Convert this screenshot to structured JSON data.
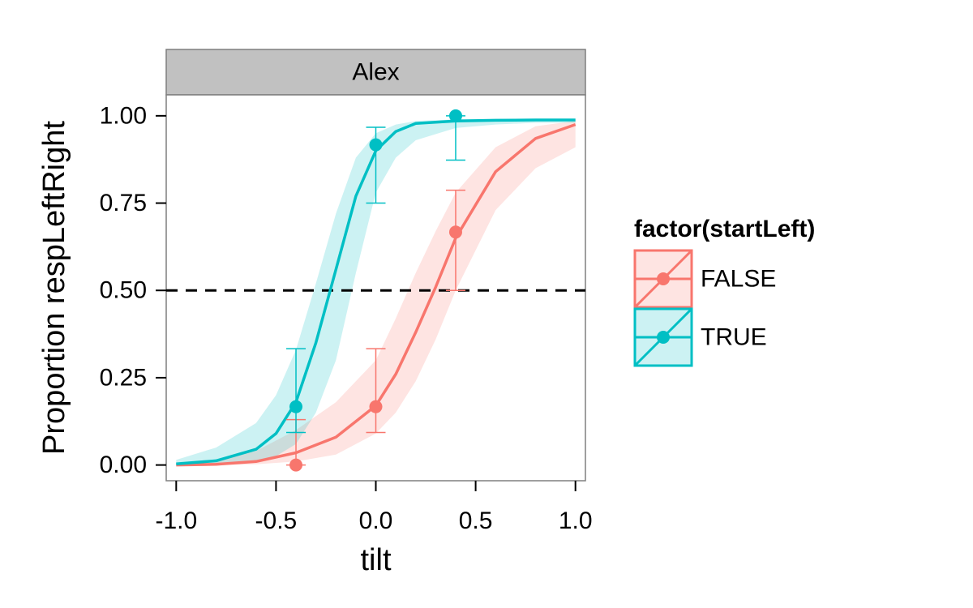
{
  "chart_data": {
    "type": "line",
    "panel_title": "Alex",
    "xlabel": "tilt",
    "ylabel": "Proportion respLeftRight",
    "xlim": [
      -1.05,
      1.05
    ],
    "ylim": [
      -0.045,
      1.06
    ],
    "x_ticks": [
      -1.0,
      -0.5,
      0.0,
      0.5,
      1.0
    ],
    "x_tick_labels": [
      "-1.0",
      "-0.5",
      "0.0",
      "0.5",
      "1.0"
    ],
    "y_ticks": [
      0.0,
      0.25,
      0.5,
      0.75,
      1.0
    ],
    "y_tick_labels": [
      "0.00",
      "0.25",
      "0.50",
      "0.75",
      "1.00"
    ],
    "reference_line": {
      "y": 0.5,
      "style": "dashed",
      "color": "#000000"
    },
    "grid": false,
    "legend": {
      "title": "factor(startLeft)",
      "position": "right",
      "entries": [
        "FALSE",
        "TRUE"
      ]
    },
    "series": [
      {
        "name": "FALSE",
        "color": "#f8766d",
        "band_color": "#f8766d",
        "points": [
          {
            "x": -0.4,
            "y": 0.0,
            "ymin": 0.0,
            "ymax": 0.13
          },
          {
            "x": 0.0,
            "y": 0.167,
            "ymin": 0.093,
            "ymax": 0.333
          },
          {
            "x": 0.4,
            "y": 0.667,
            "ymin": 0.5,
            "ymax": 0.787
          }
        ],
        "curve": {
          "x": [
            -1.0,
            -0.8,
            -0.6,
            -0.4,
            -0.2,
            0.0,
            0.1,
            0.2,
            0.3,
            0.4,
            0.6,
            0.8,
            1.0
          ],
          "y": [
            0.0,
            0.002,
            0.01,
            0.035,
            0.08,
            0.17,
            0.26,
            0.38,
            0.51,
            0.65,
            0.84,
            0.935,
            0.975
          ],
          "lower": [
            0.0,
            0.0,
            0.002,
            0.01,
            0.03,
            0.09,
            0.15,
            0.24,
            0.36,
            0.5,
            0.73,
            0.85,
            0.91
          ],
          "upper": [
            0.005,
            0.015,
            0.04,
            0.1,
            0.18,
            0.3,
            0.42,
            0.55,
            0.67,
            0.78,
            0.91,
            0.97,
            0.985
          ]
        }
      },
      {
        "name": "TRUE",
        "color": "#00bfc4",
        "band_color": "#00bfc4",
        "points": [
          {
            "x": -0.4,
            "y": 0.167,
            "ymin": 0.093,
            "ymax": 0.333
          },
          {
            "x": 0.0,
            "y": 0.917,
            "ymin": 0.75,
            "ymax": 0.967
          },
          {
            "x": 0.4,
            "y": 1.0,
            "ymin": 0.873,
            "ymax": 1.0
          }
        ],
        "curve": {
          "x": [
            -1.0,
            -0.8,
            -0.6,
            -0.5,
            -0.4,
            -0.3,
            -0.2,
            -0.1,
            0.0,
            0.1,
            0.2,
            0.4,
            0.6,
            0.8,
            1.0
          ],
          "y": [
            0.003,
            0.012,
            0.045,
            0.09,
            0.18,
            0.35,
            0.56,
            0.77,
            0.9,
            0.955,
            0.978,
            0.985,
            0.987,
            0.988,
            0.988
          ],
          "lower": [
            0.0,
            0.002,
            0.01,
            0.025,
            0.06,
            0.15,
            0.3,
            0.55,
            0.78,
            0.88,
            0.93,
            0.965,
            0.975,
            0.98,
            0.98
          ],
          "upper": [
            0.015,
            0.05,
            0.12,
            0.2,
            0.33,
            0.52,
            0.72,
            0.88,
            0.95,
            0.975,
            0.985,
            0.99,
            0.99,
            0.99,
            0.99
          ]
        }
      }
    ]
  }
}
